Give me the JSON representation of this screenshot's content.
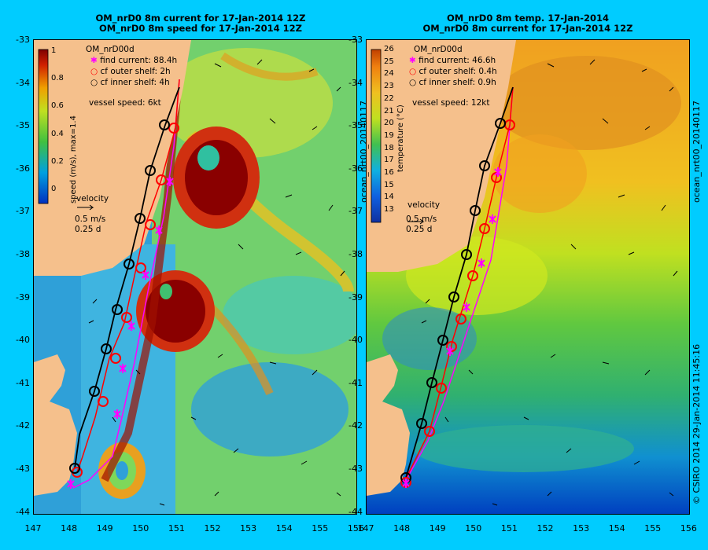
{
  "left": {
    "title_line1": "OM_nrD0 8m current for 17-Jan-2014 12Z",
    "title_line2": "OM_nrD0 8m speed for 17-Jan-2014 12Z",
    "model": "OM_nrD00d",
    "legend": {
      "find": "find current: 88.4h",
      "outer": "cf outer shelf: 2h",
      "inner": "cf inner shelf: 4h"
    },
    "vessel": "vessel speed: 6kt",
    "cb_label": "speed (m/s),  max=1.4",
    "cb_ticks": [
      "1",
      "0.8",
      "0.6",
      "0.4",
      "0.2",
      "0"
    ],
    "velocity": "velocity",
    "vel_scale1": "0.5 m/s",
    "vel_scale2": "0.25 d",
    "side_label": "ocean_nrt00_20140117"
  },
  "right": {
    "title_line1": "OM_nrD0 8m temp. 17-Jan-2014",
    "title_line2": "OM_nrD0 8m current for 17-Jan-2014 12Z",
    "model": "OM_nrD00d",
    "legend": {
      "find": "find current: 46.6h",
      "outer": "cf outer shelf: 0.4h",
      "inner": "cf inner shelf: 0.9h"
    },
    "vessel": "vessel speed: 12kt",
    "cb_label": "temperature (°C)",
    "cb_ticks": [
      "26",
      "25",
      "24",
      "23",
      "22",
      "21",
      "20",
      "19",
      "18",
      "17",
      "16",
      "15",
      "14",
      "13"
    ],
    "velocity": "velocity",
    "vel_scale1": "0.5 m/s",
    "vel_scale2": "0.25 d",
    "side_label": "ocean_nrt00_20140117"
  },
  "y_ticks": [
    "-33",
    "-34",
    "-35",
    "-36",
    "-37",
    "-38",
    "-39",
    "-40",
    "-41",
    "-42",
    "-43",
    "-44"
  ],
  "x_ticks": [
    "147",
    "148",
    "149",
    "150",
    "151",
    "152",
    "153",
    "154",
    "155",
    "156"
  ],
  "footer_right": "© CSIRO 2014   29-Jan-2014 11:45:16",
  "colors": {
    "background": "#00ccff",
    "land": "#f5c08c",
    "find_track": "#ff00ff",
    "outer_track": "#ff0000",
    "inner_track": "#000000"
  }
}
